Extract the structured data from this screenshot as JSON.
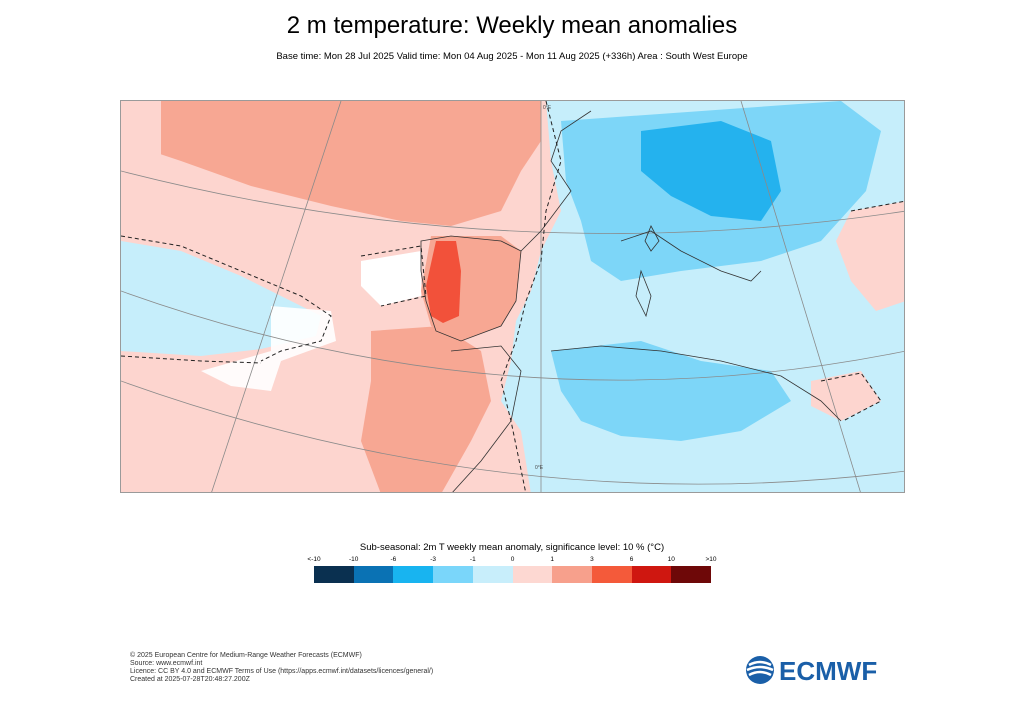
{
  "title": "2 m temperature: Weekly mean anomalies",
  "subtitle": "Base time: Mon 28 Jul 2025 Valid time: Mon 04 Aug 2025 - Mon 11 Aug 2025 (+336h) Area : South West Europe",
  "map": {
    "region": "South West Europe",
    "meridian_label_top": "0°E",
    "meridian_label_bottom": "0°E"
  },
  "legend": {
    "title": "Sub-seasonal: 2m T weekly mean anomaly, significance level: 10 % (°C)",
    "ticks": [
      "<-10",
      "-10",
      "-6",
      "-3",
      "-1",
      "0",
      "1",
      "3",
      "6",
      "10",
      ">10"
    ],
    "colors": [
      "#0a3050",
      "#0a72b4",
      "#18b4f0",
      "#7ad6fa",
      "#c8eefb",
      "#fdd8d2",
      "#f7a08c",
      "#f45a3a",
      "#cf1710",
      "#6e0808"
    ]
  },
  "colors": {
    "warm_light": "#fdd5cf",
    "warm_medium": "#f7a793",
    "warm_strong": "#f2513a",
    "cold_light": "#c6eefb",
    "cold_medium": "#7dd6f8",
    "cold_strong": "#24b2ee"
  },
  "footer": {
    "line1": "© 2025 European Centre for Medium-Range Weather Forecasts (ECMWF)",
    "line2": "Source: www.ecmwf.int",
    "line3": "Licence: CC BY 4.0 and ECMWF Terms of Use (https://apps.ecmwf.int/datasets/licences/general/)",
    "line4": "Created at 2025-07-28T20:48:27.200Z"
  },
  "logo": {
    "text": "ECMWF",
    "color": "#1a5fa8"
  }
}
